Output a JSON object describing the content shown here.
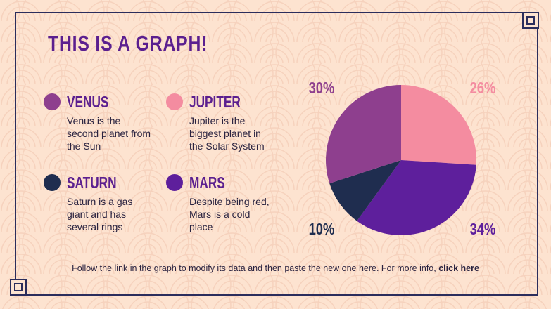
{
  "chart_data": {
    "type": "pie",
    "title": "THIS IS A GRAPH!",
    "categories": [
      "JUPITER",
      "MARS",
      "SATURN",
      "VENUS"
    ],
    "values": [
      26,
      34,
      10,
      30
    ],
    "value_labels": [
      "26%",
      "34%",
      "10%",
      "30%"
    ],
    "colors": [
      "#f48ca0",
      "#5e1f9c",
      "#1f2d4f",
      "#8e3f8e"
    ],
    "descriptions": [
      "Jupiter is the biggest planet in the Solar System",
      "Despite being red, Mars is a cold place",
      "Saturn is a gas giant and has several rings",
      "Venus is the second planet from the Sun"
    ]
  },
  "footer": {
    "text": "Follow the link in the graph to modify its data and then paste the new one here. For more info,",
    "link": "click here"
  }
}
